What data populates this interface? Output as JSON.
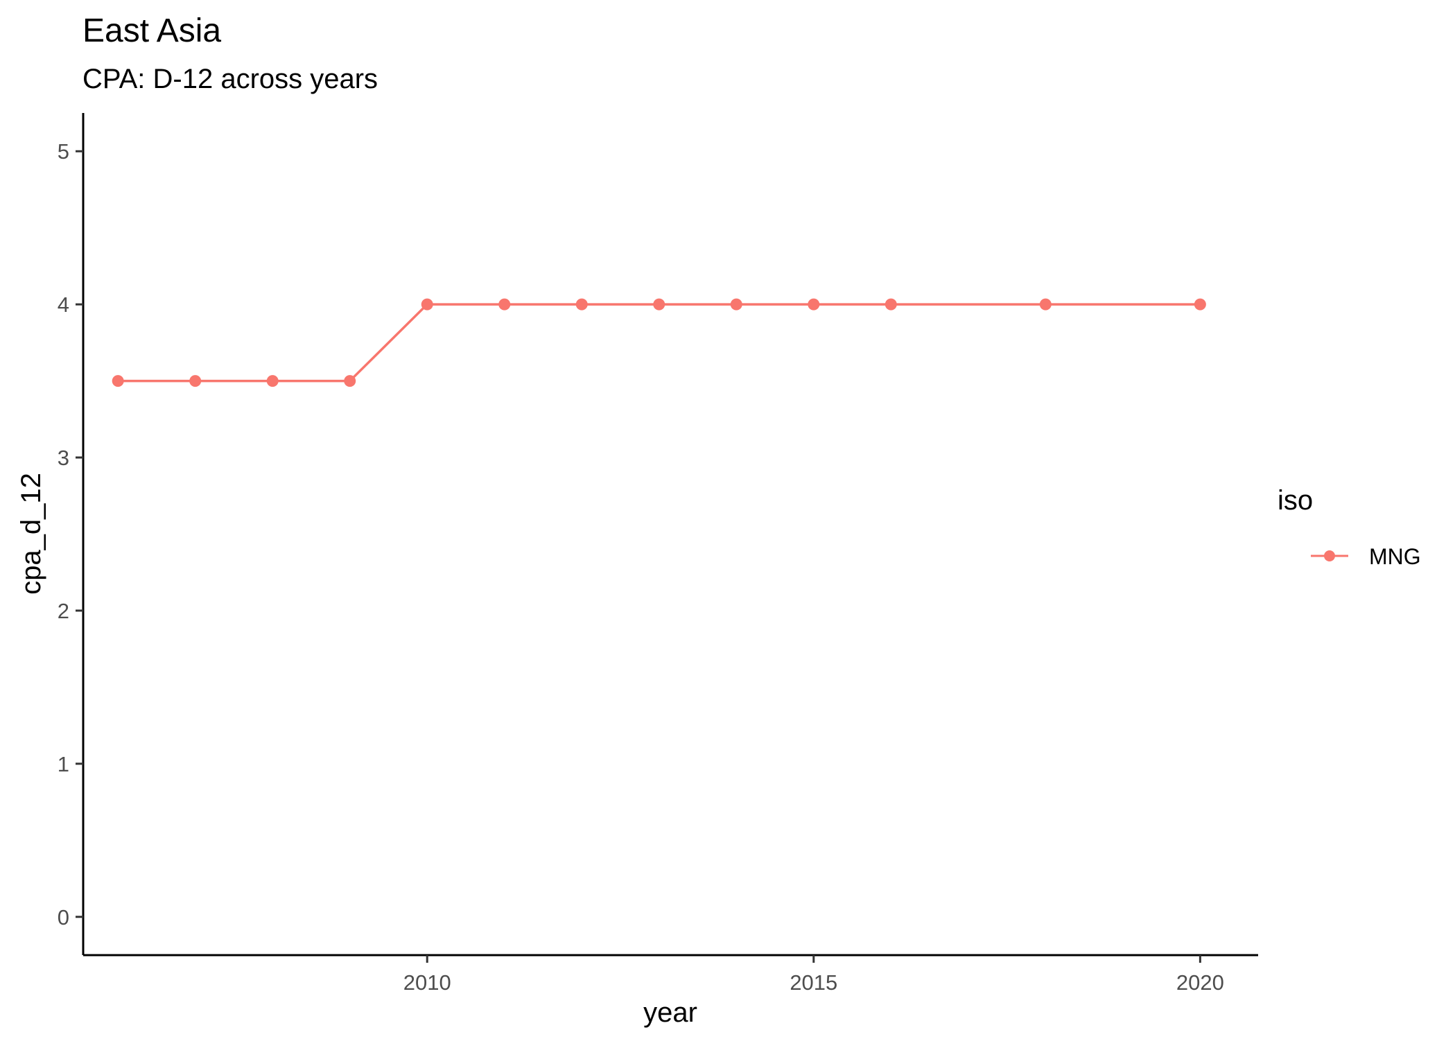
{
  "chart_data": {
    "type": "line",
    "title": "East Asia",
    "subtitle": "CPA: D-12 across years",
    "xlabel": "year",
    "ylabel": "cpa_d_12",
    "xlim": [
      2005.55,
      2020.75
    ],
    "ylim": [
      -0.25,
      5.25
    ],
    "x_ticks": [
      2010,
      2015,
      2020
    ],
    "y_ticks": [
      0,
      1,
      2,
      3,
      4,
      5
    ],
    "grid": false,
    "legend": {
      "title": "iso",
      "position": "right"
    },
    "series": [
      {
        "name": "MNG",
        "color": "#F8766D",
        "x": [
          2006,
          2007,
          2008,
          2009,
          2010,
          2011,
          2012,
          2013,
          2014,
          2015,
          2016,
          2018,
          2020
        ],
        "y": [
          3.5,
          3.5,
          3.5,
          3.5,
          4,
          4,
          4,
          4,
          4,
          4,
          4,
          4,
          4
        ]
      }
    ]
  }
}
